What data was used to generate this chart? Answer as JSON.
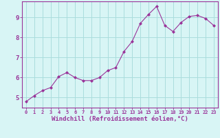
{
  "x": [
    0,
    1,
    2,
    3,
    4,
    5,
    6,
    7,
    8,
    9,
    10,
    11,
    12,
    13,
    14,
    15,
    16,
    17,
    18,
    19,
    20,
    21,
    22,
    23
  ],
  "y": [
    4.8,
    5.1,
    5.35,
    5.5,
    6.05,
    6.25,
    6.0,
    5.85,
    5.85,
    6.0,
    6.35,
    6.5,
    7.3,
    7.8,
    8.7,
    9.15,
    9.55,
    8.6,
    8.3,
    8.75,
    9.05,
    9.1,
    8.95,
    8.6
  ],
  "line_color": "#993399",
  "marker": "D",
  "marker_size": 2.0,
  "background_color": "#d8f5f5",
  "grid_color": "#aadddd",
  "spine_color": "#993399",
  "tick_color": "#993399",
  "label_color": "#993399",
  "xlabel": "Windchill (Refroidissement éolien,°C)",
  "xlabel_fontsize": 6.5,
  "ytick_labels": [
    "5",
    "6",
    "7",
    "8",
    "9"
  ],
  "ytick_vals": [
    5,
    6,
    7,
    8,
    9
  ],
  "xlim": [
    -0.5,
    23.5
  ],
  "ylim": [
    4.5,
    9.8
  ],
  "xtick_fontsize": 5.0,
  "ytick_fontsize": 6.5
}
